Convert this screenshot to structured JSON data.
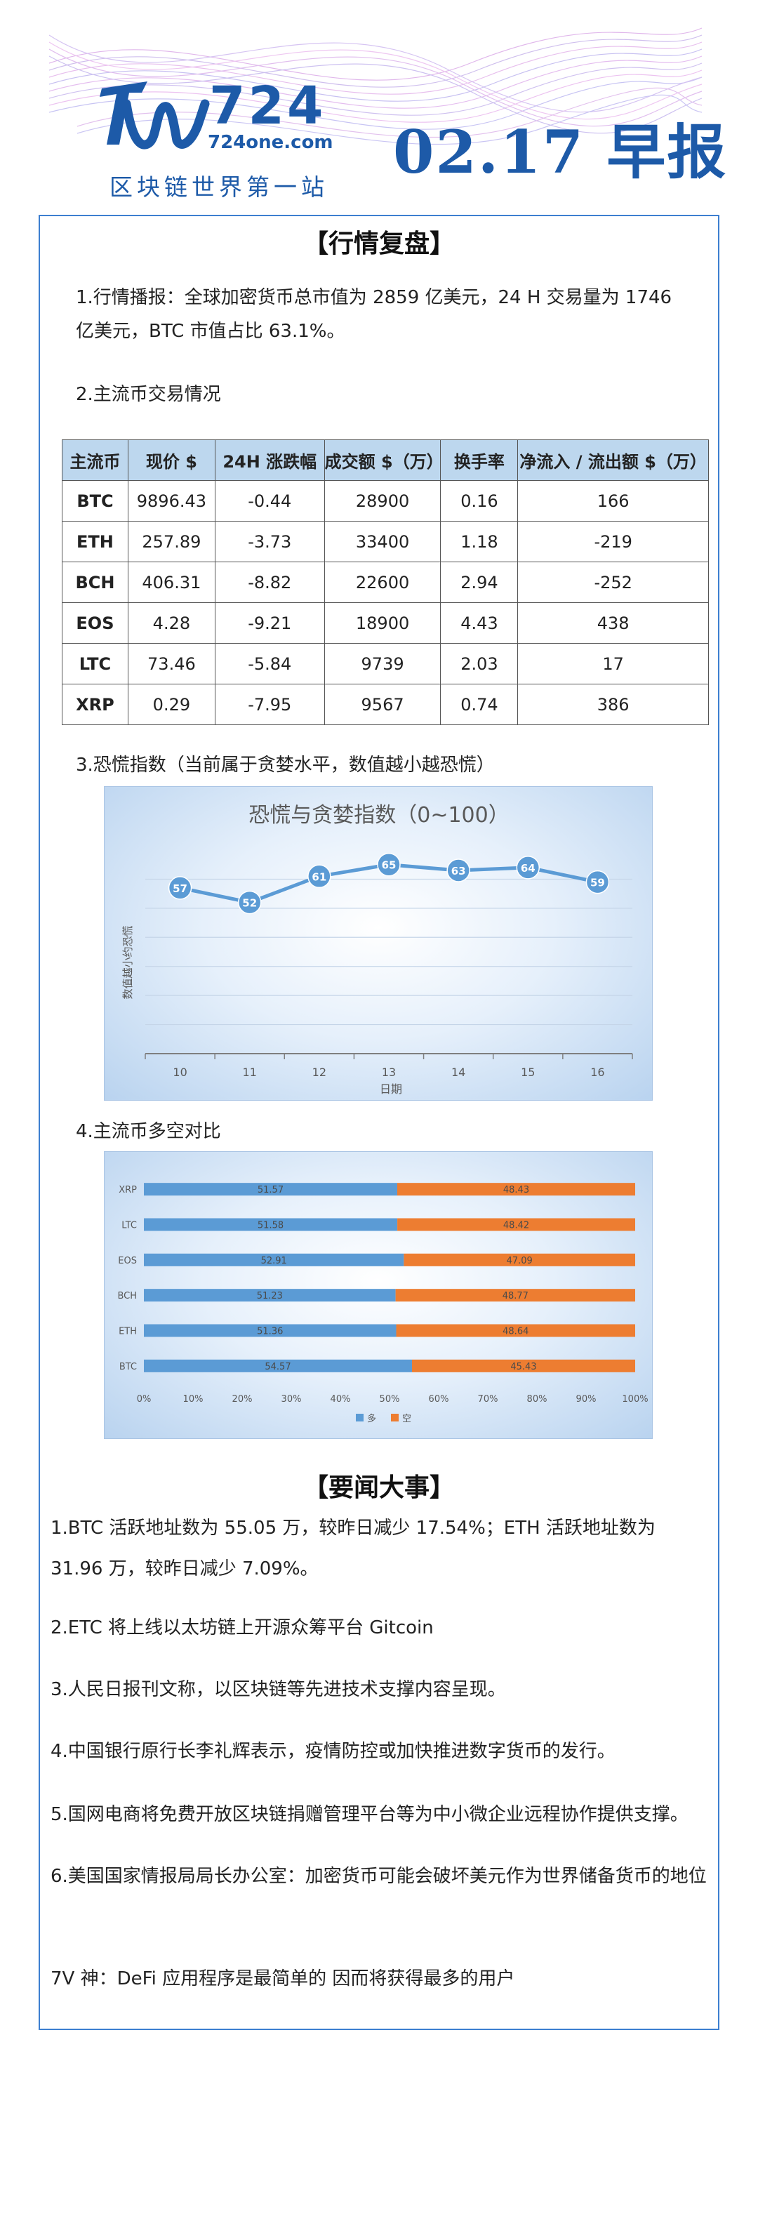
{
  "header": {
    "logo_number": "724",
    "logo_domain": "724one.com",
    "slogan": "区块链世界第一站",
    "date_title": "02.17 早报"
  },
  "market_review": {
    "section_title": "【行情复盘】",
    "item1_text": "1.行情播报：全球加密货币总市值为 2859 亿美元，24 H 交易量为 1746 亿美元，BTC 市值占比 63.1%。",
    "item2_title": "2.主流币交易情况",
    "table": {
      "headers": [
        "主流币",
        "现价 $",
        "24H 涨跌幅",
        "成交额 $（万）",
        "换手率",
        "净流入 / 流出额 $（万）"
      ],
      "rows": [
        [
          "BTC",
          "9896.43",
          "-0.44",
          "28900",
          "0.16",
          "166"
        ],
        [
          "ETH",
          "257.89",
          "-3.73",
          "33400",
          "1.18",
          "-219"
        ],
        [
          "BCH",
          "406.31",
          "-8.82",
          "22600",
          "2.94",
          "-252"
        ],
        [
          "EOS",
          "4.28",
          "-9.21",
          "18900",
          "4.43",
          "438"
        ],
        [
          "LTC",
          "73.46",
          "-5.84",
          "9739",
          "2.03",
          "17"
        ],
        [
          "XRP",
          "0.29",
          "-7.95",
          "9567",
          "0.74",
          "386"
        ]
      ]
    },
    "item3_title": "3.恐慌指数（当前属于贪婪水平，数值越小越恐慌）",
    "item4_title": "4.主流币多空对比"
  },
  "chart_data": [
    {
      "type": "line",
      "title": "恐慌与贪婪指数（0~100）",
      "xlabel": "日期",
      "ylabel": "数值越小约恐慌",
      "x": [
        "10",
        "11",
        "12",
        "13",
        "14",
        "15",
        "16"
      ],
      "series": [
        {
          "values": [
            57,
            52,
            61,
            65,
            63,
            64,
            59
          ]
        }
      ],
      "ylim": [
        0,
        70
      ],
      "grid": true,
      "color": "#5b9bd5"
    },
    {
      "type": "bar",
      "orientation": "horizontal-stacked-percent",
      "categories": [
        "XRP",
        "LTC",
        "EOS",
        "BCH",
        "ETH",
        "BTC"
      ],
      "series": [
        {
          "name": "多",
          "values": [
            51.57,
            51.58,
            52.91,
            51.23,
            51.36,
            54.57
          ],
          "color": "#5b9bd5"
        },
        {
          "name": "空",
          "values": [
            48.43,
            48.42,
            47.09,
            48.77,
            48.64,
            45.43
          ],
          "color": "#ed7d31"
        }
      ],
      "x_ticks": [
        "0%",
        "10%",
        "20%",
        "30%",
        "40%",
        "50%",
        "60%",
        "70%",
        "80%",
        "90%",
        "100%"
      ],
      "xlim": [
        0,
        100
      ],
      "legend": "bottom"
    }
  ],
  "news": {
    "section_title": "【要闻大事】",
    "items": [
      "1.BTC 活跃地址数为 55.05 万，较昨日减少 17.54%；ETH 活跃地址数为 31.96 万，较昨日减少 7.09%。",
      "2.ETC 将上线以太坊链上开源众筹平台 Gitcoin",
      "3.人民日报刊文称，以区块链等先进技术支撑内容呈现。",
      "4.中国银行原行长李礼辉表示，疫情防控或加快推进数字货币的发行。",
      "5.国网电商将免费开放区块链捐赠管理平台等为中小微企业远程协作提供支撑。",
      "6.美国国家情报局局长办公室：加密货币可能会破坏美元作为世界储备货币的地位",
      "7V 神：DeFi 应用程序是最简单的  因而将获得最多的用户"
    ]
  }
}
